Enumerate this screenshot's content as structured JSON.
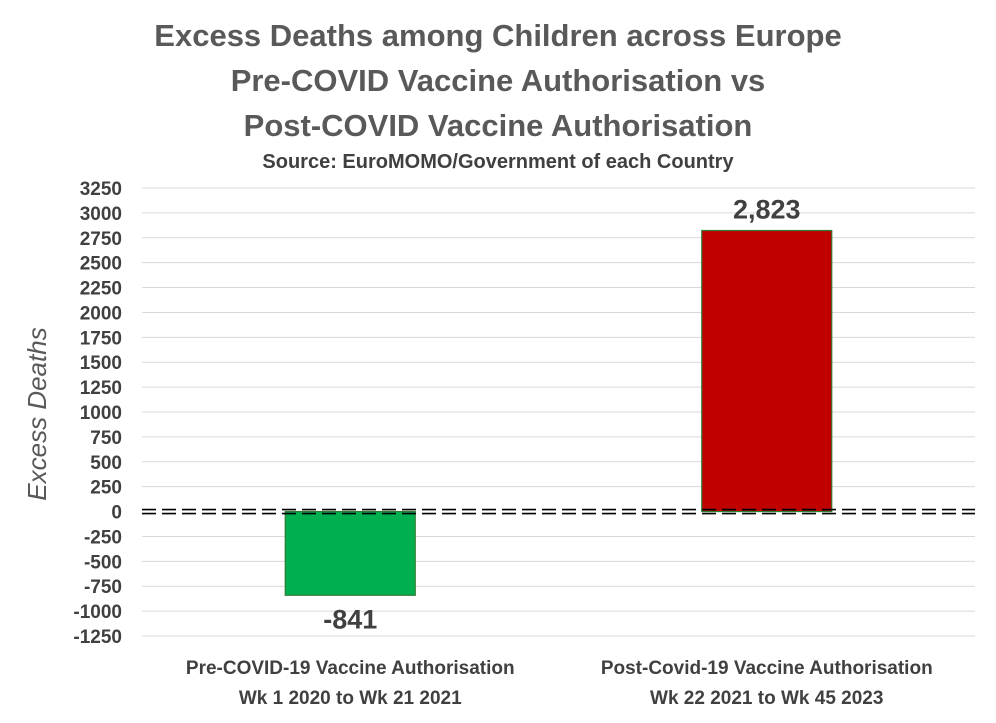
{
  "chart_data": {
    "type": "bar",
    "title_lines": [
      "Excess Deaths among Children across Europe",
      "Pre-COVID Vaccine Authorisation vs",
      "Post-COVID Vaccine Authorisation"
    ],
    "subtitle": "Source: EuroMOMO/Government of each Country",
    "ylabel": "Excess Deaths",
    "xlabel": "",
    "ylim": [
      -1250,
      3250
    ],
    "yticks": [
      3250,
      3000,
      2750,
      2500,
      2250,
      2000,
      1750,
      1500,
      1250,
      1000,
      750,
      500,
      250,
      0,
      -250,
      -500,
      -750,
      -1000,
      -1250
    ],
    "grid": true,
    "legend": "none",
    "categories": [
      [
        "Pre-COVID-19 Vaccine Authorisation",
        "Wk 1 2020 to Wk 21 2021"
      ],
      [
        "Post-Covid-19 Vaccine Authorisation",
        "Wk 22 2021 to Wk 45 2023"
      ]
    ],
    "values": [
      -841,
      2823
    ],
    "data_labels": [
      "-841",
      "2,823"
    ],
    "colors": [
      "#00b050",
      "#c00000"
    ],
    "border_color": "#2e7d32",
    "zero_line_style": "dashed"
  }
}
